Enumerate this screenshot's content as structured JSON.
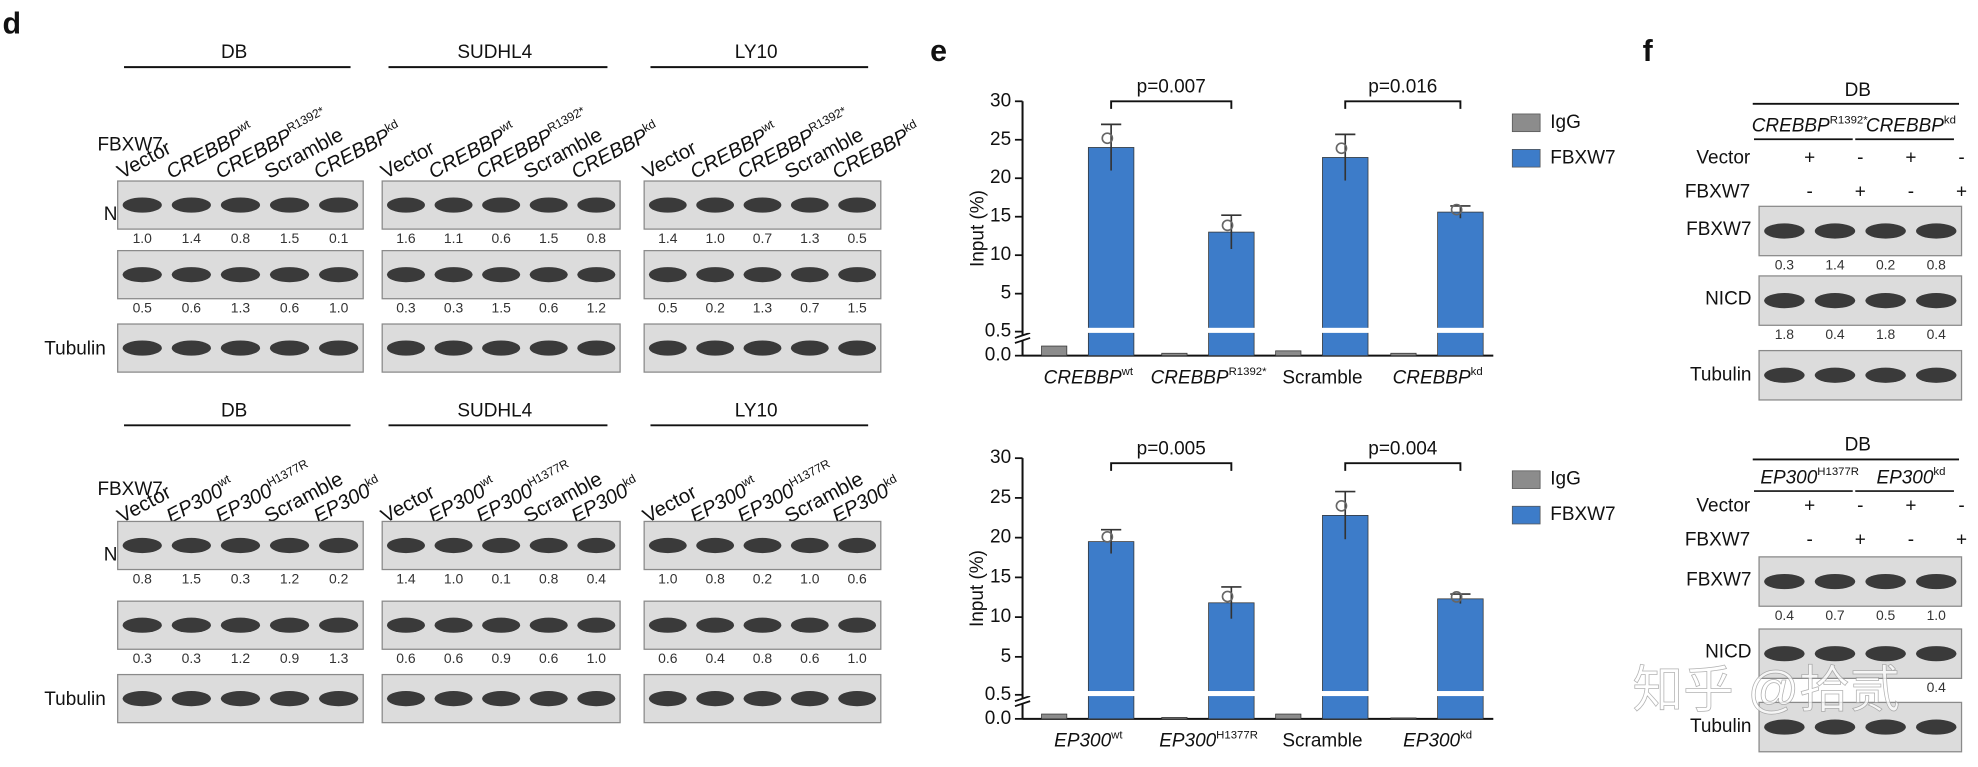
{
  "panel_d": {
    "label": "d",
    "rows": [
      {
        "row_labels": [
          "FBXW7",
          "NICD",
          "Tubulin"
        ],
        "lanes": [
          {
            "text": "Vector"
          },
          {
            "text": "CREBBP",
            "sup": "wt"
          },
          {
            "text": "CREBBP",
            "sup": "R1392*"
          },
          {
            "text": "Scramble"
          },
          {
            "text": "CREBBP",
            "sup": "kd"
          }
        ],
        "groups": [
          {
            "cell_line": "DB",
            "fbxw7": [
              "1.0",
              "1.4",
              "0.8",
              "1.5",
              "0.1"
            ],
            "nicd": [
              "0.5",
              "0.6",
              "1.3",
              "0.6",
              "1.0"
            ]
          },
          {
            "cell_line": "SUDHL4",
            "fbxw7": [
              "1.6",
              "1.1",
              "0.6",
              "1.5",
              "0.8"
            ],
            "nicd": [
              "0.3",
              "0.3",
              "1.5",
              "0.6",
              "1.2"
            ]
          },
          {
            "cell_line": "LY10",
            "fbxw7": [
              "1.4",
              "1.0",
              "0.7",
              "1.3",
              "0.5"
            ],
            "nicd": [
              "0.5",
              "0.2",
              "1.3",
              "0.7",
              "1.5"
            ]
          }
        ]
      },
      {
        "row_labels": [
          "FBXW7",
          "NICD",
          "Tubulin"
        ],
        "lanes": [
          {
            "text": "Vector"
          },
          {
            "text": "EP300",
            "sup": "wt"
          },
          {
            "text": "EP300",
            "sup": "H1377R"
          },
          {
            "text": "Scramble"
          },
          {
            "text": "EP300",
            "sup": "kd"
          }
        ],
        "groups": [
          {
            "cell_line": "DB",
            "fbxw7": [
              "0.8",
              "1.5",
              "0.3",
              "1.2",
              "0.2"
            ],
            "nicd": [
              "0.3",
              "0.3",
              "1.2",
              "0.9",
              "1.3"
            ]
          },
          {
            "cell_line": "SUDHL4",
            "fbxw7": [
              "1.4",
              "1.0",
              "0.1",
              "0.8",
              "0.4"
            ],
            "nicd": [
              "0.6",
              "0.6",
              "0.9",
              "0.6",
              "1.0"
            ]
          },
          {
            "cell_line": "LY10",
            "fbxw7": [
              "1.0",
              "0.8",
              "0.2",
              "1.0",
              "0.6"
            ],
            "nicd": [
              "0.6",
              "0.4",
              "0.8",
              "0.6",
              "1.0"
            ]
          }
        ]
      }
    ]
  },
  "panel_e_label": "e",
  "chart_data": [
    {
      "type": "bar",
      "categories": [
        "CREBBP",
        "CREBBP",
        "Scramble",
        "CREBBP"
      ],
      "category_superscripts": [
        "wt",
        "R1392*",
        null,
        "kd"
      ],
      "series": [
        {
          "name": "IgG",
          "color": "#8c8c8c",
          "values": [
            0.2,
            0.05,
            0.1,
            0.05
          ]
        },
        {
          "name": "FBXW7",
          "color": "#3d7cc9",
          "values": [
            24.0,
            13.0,
            22.7,
            15.6
          ],
          "errors": [
            3.0,
            2.2,
            3.0,
            0.8
          ]
        }
      ],
      "ylabel": "Input (%)",
      "ylim": [
        0,
        30
      ],
      "axis_break": [
        0.5,
        5
      ],
      "yticks": [
        {
          "value": 0,
          "label": "0.0"
        },
        0.5,
        5,
        10,
        15,
        20,
        25,
        30
      ],
      "annotations": [
        "p=0.007",
        "p=0.016"
      ]
    },
    {
      "type": "bar",
      "categories": [
        "EP300",
        "EP300",
        "Scramble",
        "EP300"
      ],
      "category_superscripts": [
        "wt",
        "H1377R",
        null,
        "kd"
      ],
      "series": [
        {
          "name": "IgG",
          "color": "#8c8c8c",
          "values": [
            0.1,
            0.03,
            0.1,
            0.02
          ]
        },
        {
          "name": "FBXW7",
          "color": "#3d7cc9",
          "values": [
            19.5,
            11.8,
            22.8,
            12.3
          ],
          "errors": [
            1.5,
            2.0,
            3.0,
            0.6
          ]
        }
      ],
      "ylabel": "Input (%)",
      "ylim": [
        0,
        30
      ],
      "axis_break": [
        0.5,
        5
      ],
      "yticks": [
        {
          "value": 0,
          "label": "0.0"
        },
        0.5,
        5,
        10,
        15,
        20,
        25,
        30
      ],
      "annotations": [
        "p=0.005",
        "p=0.004"
      ]
    }
  ],
  "panel_f": {
    "label": "f",
    "blocks": [
      {
        "cell_line": "DB",
        "groups": [
          {
            "text": "CREBBP",
            "sup": "R1392*"
          },
          {
            "text": "CREBBP",
            "sup": "kd"
          }
        ],
        "conditions": [
          {
            "name": "Vector",
            "marks": [
              "+",
              "-",
              "+",
              "-"
            ]
          },
          {
            "name": "FBXW7",
            "marks": [
              "-",
              "+",
              "-",
              "+"
            ]
          }
        ],
        "blots": [
          {
            "name": "FBXW7",
            "values": [
              "0.3",
              "1.4",
              "0.2",
              "0.8"
            ]
          },
          {
            "name": "NICD",
            "values": [
              "1.8",
              "0.4",
              "1.8",
              "0.4"
            ]
          },
          {
            "name": "Tubulin"
          }
        ]
      },
      {
        "cell_line": "DB",
        "groups": [
          {
            "text": "EP300",
            "sup": "H1377R"
          },
          {
            "text": "EP300",
            "sup": "kd"
          }
        ],
        "conditions": [
          {
            "name": "Vector",
            "marks": [
              "+",
              "-",
              "+",
              "-"
            ]
          },
          {
            "name": "FBXW7",
            "marks": [
              "-",
              "+",
              "-",
              "+"
            ]
          }
        ],
        "blots": [
          {
            "name": "FBXW7",
            "values": [
              "0.4",
              "0.7",
              "0.5",
              "1.0"
            ]
          },
          {
            "name": "NICD",
            "values": [
              null,
              null,
              null,
              "0.4"
            ]
          },
          {
            "name": "Tubulin"
          }
        ]
      }
    ]
  },
  "watermark": "知乎 @拾贰"
}
